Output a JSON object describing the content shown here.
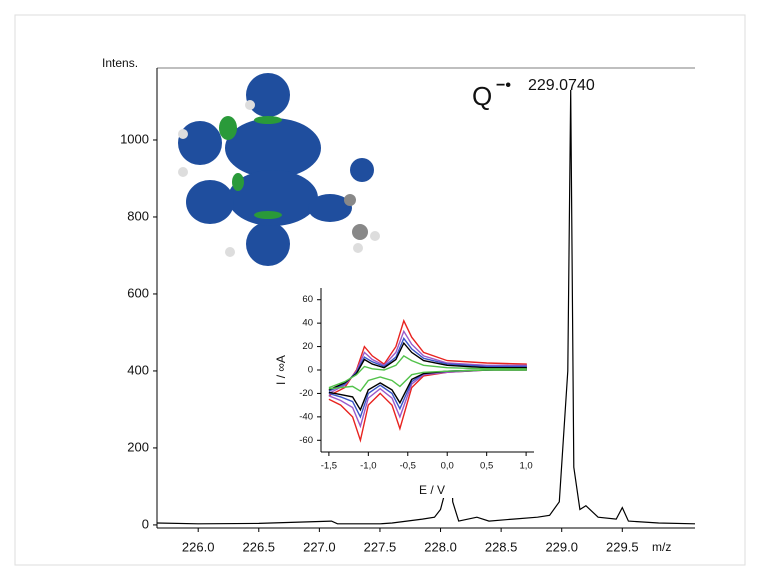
{
  "chart_data": [
    {
      "type": "line",
      "xlabel": "m/z",
      "ylabel": "Intens.",
      "color": "#000000",
      "x": [
        225.66,
        226.0,
        226.5,
        227.1,
        227.15,
        227.5,
        227.6,
        227.85,
        227.95,
        228.0,
        228.05,
        228.08,
        228.1,
        228.15,
        228.3,
        228.4,
        228.6,
        228.8,
        228.9,
        228.98,
        229.05,
        229.074,
        229.1,
        229.15,
        229.2,
        229.3,
        229.45,
        229.5,
        229.55,
        229.8,
        230.1
      ],
      "values": [
        5,
        3,
        4,
        10,
        3,
        3,
        5,
        15,
        20,
        40,
        100,
        320,
        60,
        10,
        20,
        10,
        15,
        20,
        25,
        60,
        400,
        1130,
        150,
        40,
        50,
        20,
        15,
        45,
        10,
        5,
        3
      ],
      "xlim": [
        225.66,
        230.1
      ],
      "xticks": [
        {
          "value": 226,
          "label": "226.0"
        },
        {
          "value": 226.5,
          "label": "226.5"
        },
        {
          "value": 227,
          "label": "227.0"
        },
        {
          "value": 227.5,
          "label": "227.5"
        },
        {
          "value": 228,
          "label": "228.0"
        },
        {
          "value": 228.5,
          "label": "228.5"
        },
        {
          "value": 229,
          "label": "229.0"
        },
        {
          "value": 229.5,
          "label": "229.5"
        }
      ],
      "ylim": [
        -8,
        1187
      ],
      "yticks": [
        0,
        200,
        400,
        600,
        800,
        1000
      ],
      "annotation": {
        "species": "Q",
        "charge": "−•",
        "mass": "229.0740"
      }
    },
    {
      "type": "line",
      "xlabel": "E / V",
      "ylabel": "I / ∞A",
      "x": [
        -1.5,
        -1.3,
        -1.15,
        -1.05,
        -0.95,
        -0.8,
        -0.65,
        -0.55,
        -0.45,
        -0.3,
        0,
        0.5,
        1.0,
        1.0,
        0.5,
        0,
        -0.3,
        -0.45,
        -0.6,
        -0.7,
        -0.85,
        -1.0,
        -1.1,
        -1.2,
        -1.35,
        -1.5
      ],
      "series": [
        {
          "color": "#e8231f",
          "values": [
            -22,
            -15,
            0,
            20,
            12,
            5,
            20,
            42,
            28,
            15,
            8,
            6,
            5,
            2,
            0,
            -2,
            -5,
            -15,
            -50,
            -30,
            -20,
            -30,
            -60,
            -40,
            -30,
            -25
          ]
        },
        {
          "color": "#9b59c9",
          "values": [
            -20,
            -13,
            -1,
            15,
            9,
            4,
            15,
            33,
            22,
            12,
            6,
            4,
            4,
            1,
            0,
            -2,
            -4,
            -12,
            -40,
            -24,
            -16,
            -24,
            -48,
            -32,
            -26,
            -22
          ]
        },
        {
          "color": "#3a55c8",
          "values": [
            -18,
            -12,
            -2,
            11,
            7,
            3,
            11,
            27,
            18,
            10,
            5,
            3,
            3,
            1,
            0,
            -1,
            -3,
            -10,
            -33,
            -20,
            -13,
            -20,
            -40,
            -27,
            -23,
            -20
          ]
        },
        {
          "color": "#000000",
          "values": [
            -17,
            -11,
            -3,
            9,
            5,
            2,
            9,
            23,
            15,
            8,
            4,
            2,
            2,
            0,
            0,
            -1,
            -3,
            -8,
            -28,
            -17,
            -11,
            -17,
            -34,
            -23,
            -21,
            -19
          ]
        },
        {
          "color": "#52c24a",
          "values": [
            -15,
            -10,
            -4,
            3,
            1,
            0,
            4,
            12,
            8,
            4,
            2,
            1,
            1,
            0,
            0,
            -1,
            -2,
            -4,
            -14,
            -9,
            -6,
            -9,
            -18,
            -14,
            -15,
            -16
          ]
        }
      ],
      "xlim": [
        -1.6,
        1.1
      ],
      "xticks": [
        {
          "value": -1.5,
          "label": "-1,5"
        },
        {
          "value": -1,
          "label": "-1,0"
        },
        {
          "value": -0.5,
          "label": "-0,5"
        },
        {
          "value": 0,
          "label": "0,0"
        },
        {
          "value": 0.5,
          "label": "0,5"
        },
        {
          "value": 1,
          "label": "1,0"
        }
      ],
      "ylim": [
        -70,
        70
      ],
      "yticks": [
        -60,
        -40,
        -20,
        0,
        20,
        40,
        60
      ]
    }
  ]
}
